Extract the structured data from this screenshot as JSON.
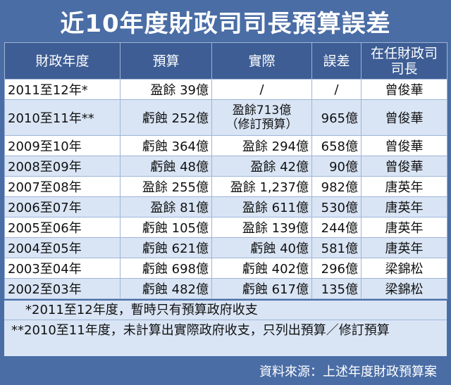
{
  "title": "近10年度財政司司長預算誤差",
  "headers": {
    "year": "財政年度",
    "budget": "預算",
    "actual": "實際",
    "diff": "誤差",
    "official_line1": "在任財政司",
    "official_line2": "司長"
  },
  "rows": [
    {
      "year": "2011至12年*",
      "budget": "盈餘 39億",
      "actual": "/",
      "actual_note": "",
      "diff": "/",
      "official": "曾俊華"
    },
    {
      "year": "2010至11年**",
      "budget": "虧蝕 252億",
      "actual": "盈餘713億",
      "actual_note": "（修訂預算）",
      "diff": "965億",
      "official": "曾俊華"
    },
    {
      "year": "2009至10年",
      "budget": "虧蝕 364億",
      "actual": "盈餘 294億",
      "actual_note": "",
      "diff": "658億",
      "official": "曾俊華"
    },
    {
      "year": "2008至09年",
      "budget": "虧蝕 48億",
      "actual": "盈餘 42億",
      "actual_note": "",
      "diff": "90億",
      "official": "曾俊華"
    },
    {
      "year": "2007至08年",
      "budget": "盈餘 255億",
      "actual": "盈餘 1,237億",
      "actual_note": "",
      "diff": "982億",
      "official": "唐英年"
    },
    {
      "year": "2006至07年",
      "budget": "盈餘 81億",
      "actual": "盈餘 611億",
      "actual_note": "",
      "diff": "530億",
      "official": "唐英年"
    },
    {
      "year": "2005至06年",
      "budget": "虧蝕 105億",
      "actual": "盈餘 139億",
      "actual_note": "",
      "diff": "244億",
      "official": "唐英年"
    },
    {
      "year": "2004至05年",
      "budget": "虧蝕 621億",
      "actual": "虧蝕 40億",
      "actual_note": "",
      "diff": "581億",
      "official": "唐英年"
    },
    {
      "year": "2003至04年",
      "budget": "虧蝕 698億",
      "actual": "虧蝕 402億",
      "actual_note": "",
      "diff": "296億",
      "official": "梁錦松"
    },
    {
      "year": "2002至03年",
      "budget": "虧蝕 482億",
      "actual": "虧蝕 617億",
      "actual_note": "",
      "diff": "135億",
      "official": "梁錦松"
    }
  ],
  "notes": {
    "note1": "*2011至12年度，暫時只有預算政府收支",
    "note2": "**2010至11年度，未計算出實際政府收支，只列出預算／修訂預算"
  },
  "source": "資料來源：上述年度財政預算案",
  "colors": {
    "frame": "#4a6da5",
    "header": "#3d5d94",
    "row_alt": "#d9e5f5",
    "row": "#ffffff"
  }
}
